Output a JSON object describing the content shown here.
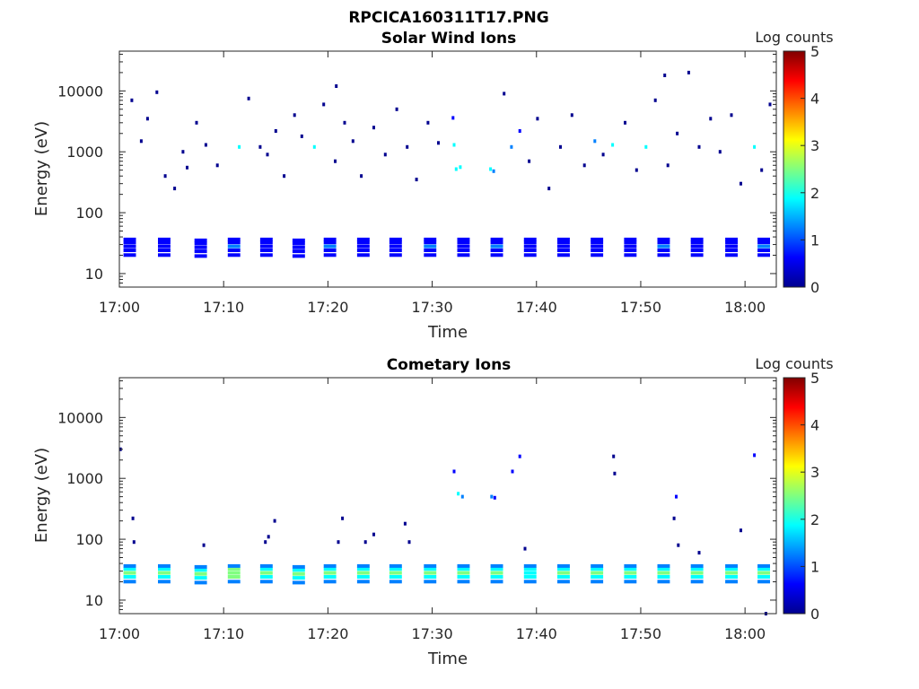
{
  "figure": {
    "title": "RPCICA160311T17.PNG"
  },
  "colormap": [
    "#00008f",
    "#0000ff",
    "#0080ff",
    "#00ffff",
    "#80ff80",
    "#ffff00",
    "#ff8000",
    "#ff0000",
    "#800000"
  ],
  "chart_data": [
    {
      "type": "heatmap",
      "title": "Solar Wind Ions",
      "xlabel": "Time",
      "ylabel": "Energy (eV)",
      "colorbar_label": "Log counts",
      "x_ticks": [
        "17:00",
        "17:10",
        "17:20",
        "17:30",
        "17:40",
        "17:50",
        "18:00"
      ],
      "x_tick_minutes": [
        0,
        10,
        20,
        30,
        40,
        50,
        60
      ],
      "xlim_minutes": [
        0,
        63
      ],
      "y_ticks": [
        "10",
        "100",
        "1000",
        "10000"
      ],
      "y_tick_values": [
        10,
        100,
        1000,
        10000
      ],
      "ylim": [
        6,
        45000
      ],
      "y_scale": "log",
      "colorbar_ticks": [
        "0",
        "1",
        "2",
        "3",
        "4",
        "5"
      ],
      "colorbar_range": [
        0,
        5
      ],
      "bands": [
        {
          "t0": 0.4,
          "t1": 1.6,
          "e": 28,
          "c": 0.9
        },
        {
          "t0": 3.7,
          "t1": 4.9,
          "e": 28,
          "c": 0.9
        },
        {
          "t0": 7.2,
          "t1": 8.4,
          "e": 27,
          "c": 0.8
        },
        {
          "t0": 10.4,
          "t1": 11.6,
          "e": 28,
          "c": 1.0
        },
        {
          "t0": 13.5,
          "t1": 14.7,
          "e": 28,
          "c": 0.9
        },
        {
          "t0": 16.6,
          "t1": 17.8,
          "e": 27,
          "c": 0.9
        },
        {
          "t0": 19.6,
          "t1": 20.8,
          "e": 28,
          "c": 1.0
        },
        {
          "t0": 22.8,
          "t1": 24.0,
          "e": 28,
          "c": 0.9
        },
        {
          "t0": 25.9,
          "t1": 27.1,
          "e": 28,
          "c": 0.9
        },
        {
          "t0": 29.2,
          "t1": 30.4,
          "e": 28,
          "c": 1.0
        },
        {
          "t0": 32.4,
          "t1": 33.6,
          "e": 28,
          "c": 0.9
        },
        {
          "t0": 35.6,
          "t1": 36.8,
          "e": 28,
          "c": 1.0
        },
        {
          "t0": 38.8,
          "t1": 40.0,
          "e": 28,
          "c": 0.8
        },
        {
          "t0": 42.0,
          "t1": 43.2,
          "e": 28,
          "c": 0.9
        },
        {
          "t0": 45.2,
          "t1": 46.4,
          "e": 28,
          "c": 0.9
        },
        {
          "t0": 48.4,
          "t1": 49.6,
          "e": 28,
          "c": 0.9
        },
        {
          "t0": 51.6,
          "t1": 52.8,
          "e": 28,
          "c": 1.0
        },
        {
          "t0": 54.8,
          "t1": 56.0,
          "e": 28,
          "c": 0.9
        },
        {
          "t0": 58.1,
          "t1": 59.3,
          "e": 28,
          "c": 0.9
        },
        {
          "t0": 61.2,
          "t1": 62.4,
          "e": 28,
          "c": 1.0
        }
      ],
      "points": [
        {
          "t": 1.2,
          "e": 7000,
          "c": 0.1
        },
        {
          "t": 2.1,
          "e": 1500,
          "c": 0.2
        },
        {
          "t": 2.7,
          "e": 3500,
          "c": 0.1
        },
        {
          "t": 3.6,
          "e": 9500,
          "c": 0.1
        },
        {
          "t": 4.4,
          "e": 400,
          "c": 0.2
        },
        {
          "t": 5.3,
          "e": 250,
          "c": 0.1
        },
        {
          "t": 6.1,
          "e": 1000,
          "c": 0.2
        },
        {
          "t": 6.5,
          "e": 550,
          "c": 0.3
        },
        {
          "t": 7.4,
          "e": 3000,
          "c": 0.1
        },
        {
          "t": 8.3,
          "e": 1300,
          "c": 0.2
        },
        {
          "t": 9.4,
          "e": 600,
          "c": 0.1
        },
        {
          "t": 11.5,
          "e": 1200,
          "c": 1.8
        },
        {
          "t": 12.4,
          "e": 7500,
          "c": 0.1
        },
        {
          "t": 13.5,
          "e": 1200,
          "c": 0.3
        },
        {
          "t": 14.2,
          "e": 900,
          "c": 0.2
        },
        {
          "t": 15.0,
          "e": 2200,
          "c": 0.1
        },
        {
          "t": 15.8,
          "e": 400,
          "c": 0.2
        },
        {
          "t": 16.8,
          "e": 4000,
          "c": 0.1
        },
        {
          "t": 17.5,
          "e": 1800,
          "c": 0.3
        },
        {
          "t": 18.7,
          "e": 1200,
          "c": 1.9
        },
        {
          "t": 19.6,
          "e": 6000,
          "c": 0.1
        },
        {
          "t": 20.7,
          "e": 700,
          "c": 0.2
        },
        {
          "t": 21.6,
          "e": 3000,
          "c": 0.1
        },
        {
          "t": 22.4,
          "e": 1500,
          "c": 0.2
        },
        {
          "t": 23.2,
          "e": 400,
          "c": 0.1
        },
        {
          "t": 24.4,
          "e": 2500,
          "c": 0.1
        },
        {
          "t": 25.5,
          "e": 900,
          "c": 0.2
        },
        {
          "t": 26.6,
          "e": 5000,
          "c": 0.1
        },
        {
          "t": 27.6,
          "e": 1200,
          "c": 0.3
        },
        {
          "t": 28.5,
          "e": 350,
          "c": 0.2
        },
        {
          "t": 29.6,
          "e": 3000,
          "c": 0.1
        },
        {
          "t": 30.6,
          "e": 1400,
          "c": 0.2
        },
        {
          "t": 32.3,
          "e": 520,
          "c": 1.9
        },
        {
          "t": 32.7,
          "e": 560,
          "c": 2.1
        },
        {
          "t": 32.1,
          "e": 1300,
          "c": 1.8
        },
        {
          "t": 32.0,
          "e": 3600,
          "c": 0.9
        },
        {
          "t": 35.6,
          "e": 520,
          "c": 1.6
        },
        {
          "t": 35.9,
          "e": 480,
          "c": 1.2
        },
        {
          "t": 37.6,
          "e": 1200,
          "c": 1.5
        },
        {
          "t": 38.4,
          "e": 2200,
          "c": 0.9
        },
        {
          "t": 39.3,
          "e": 700,
          "c": 0.2
        },
        {
          "t": 40.1,
          "e": 3500,
          "c": 0.1
        },
        {
          "t": 41.2,
          "e": 250,
          "c": 0.2
        },
        {
          "t": 42.3,
          "e": 1200,
          "c": 0.2
        },
        {
          "t": 43.4,
          "e": 4000,
          "c": 0.1
        },
        {
          "t": 44.6,
          "e": 600,
          "c": 0.2
        },
        {
          "t": 45.6,
          "e": 1500,
          "c": 1.2
        },
        {
          "t": 46.4,
          "e": 900,
          "c": 0.2
        },
        {
          "t": 47.3,
          "e": 1300,
          "c": 1.7
        },
        {
          "t": 48.5,
          "e": 3000,
          "c": 0.1
        },
        {
          "t": 49.6,
          "e": 500,
          "c": 0.2
        },
        {
          "t": 50.5,
          "e": 1200,
          "c": 1.9
        },
        {
          "t": 51.4,
          "e": 7000,
          "c": 0.1
        },
        {
          "t": 52.6,
          "e": 600,
          "c": 0.3
        },
        {
          "t": 53.5,
          "e": 2000,
          "c": 0.2
        },
        {
          "t": 54.6,
          "e": 20000,
          "c": 0.1
        },
        {
          "t": 55.6,
          "e": 1200,
          "c": 0.2
        },
        {
          "t": 56.7,
          "e": 3500,
          "c": 0.1
        },
        {
          "t": 57.6,
          "e": 1000,
          "c": 0.2
        },
        {
          "t": 58.7,
          "e": 4000,
          "c": 0.1
        },
        {
          "t": 59.6,
          "e": 300,
          "c": 0.2
        },
        {
          "t": 60.9,
          "e": 1200,
          "c": 1.9
        },
        {
          "t": 61.6,
          "e": 500,
          "c": 0.2
        },
        {
          "t": 62.4,
          "e": 6000,
          "c": 0.1
        },
        {
          "t": 20.8,
          "e": 12000,
          "c": 0.1
        },
        {
          "t": 36.9,
          "e": 9000,
          "c": 0.1
        },
        {
          "t": 52.3,
          "e": 18000,
          "c": 0.1
        }
      ]
    },
    {
      "type": "heatmap",
      "title": "Cometary Ions",
      "xlabel": "Time",
      "ylabel": "Energy (eV)",
      "colorbar_label": "Log counts",
      "x_ticks": [
        "17:00",
        "17:10",
        "17:20",
        "17:30",
        "17:40",
        "17:50",
        "18:00"
      ],
      "x_tick_minutes": [
        0,
        10,
        20,
        30,
        40,
        50,
        60
      ],
      "xlim_minutes": [
        0,
        63
      ],
      "y_ticks": [
        "10",
        "100",
        "1000",
        "10000"
      ],
      "y_tick_values": [
        10,
        100,
        1000,
        10000
      ],
      "ylim": [
        6,
        45000
      ],
      "y_scale": "log",
      "colorbar_ticks": [
        "0",
        "1",
        "2",
        "3",
        "4",
        "5"
      ],
      "colorbar_range": [
        0,
        5
      ],
      "bands": [
        {
          "t0": 0.4,
          "t1": 1.6,
          "e": 28,
          "c": 2.4
        },
        {
          "t0": 3.7,
          "t1": 4.9,
          "e": 28,
          "c": 2.3
        },
        {
          "t0": 7.2,
          "t1": 8.4,
          "e": 27,
          "c": 2.2
        },
        {
          "t0": 10.4,
          "t1": 11.6,
          "e": 28,
          "c": 2.6
        },
        {
          "t0": 13.5,
          "t1": 14.7,
          "e": 28,
          "c": 2.3
        },
        {
          "t0": 16.6,
          "t1": 17.8,
          "e": 27,
          "c": 2.2
        },
        {
          "t0": 19.6,
          "t1": 20.8,
          "e": 28,
          "c": 2.5
        },
        {
          "t0": 22.8,
          "t1": 24.0,
          "e": 28,
          "c": 2.3
        },
        {
          "t0": 25.9,
          "t1": 27.1,
          "e": 28,
          "c": 2.3
        },
        {
          "t0": 29.2,
          "t1": 30.4,
          "e": 28,
          "c": 2.5
        },
        {
          "t0": 32.4,
          "t1": 33.6,
          "e": 28,
          "c": 2.3
        },
        {
          "t0": 35.6,
          "t1": 36.8,
          "e": 28,
          "c": 2.4
        },
        {
          "t0": 38.8,
          "t1": 40.0,
          "e": 28,
          "c": 2.1
        },
        {
          "t0": 42.0,
          "t1": 43.2,
          "e": 28,
          "c": 2.3
        },
        {
          "t0": 45.2,
          "t1": 46.4,
          "e": 28,
          "c": 2.2
        },
        {
          "t0": 48.4,
          "t1": 49.6,
          "e": 28,
          "c": 2.4
        },
        {
          "t0": 51.6,
          "t1": 52.8,
          "e": 28,
          "c": 2.5
        },
        {
          "t0": 54.8,
          "t1": 56.0,
          "e": 28,
          "c": 2.3
        },
        {
          "t0": 58.1,
          "t1": 59.3,
          "e": 28,
          "c": 2.4
        },
        {
          "t0": 61.2,
          "t1": 62.4,
          "e": 28,
          "c": 2.5
        }
      ],
      "points": [
        {
          "t": 0.1,
          "e": 3000,
          "c": 0.1
        },
        {
          "t": 1.3,
          "e": 220,
          "c": 0.1
        },
        {
          "t": 1.4,
          "e": 90,
          "c": 0.1
        },
        {
          "t": 8.1,
          "e": 80,
          "c": 0.1
        },
        {
          "t": 14.3,
          "e": 110,
          "c": 0.2
        },
        {
          "t": 14.0,
          "e": 90,
          "c": 0.1
        },
        {
          "t": 14.9,
          "e": 200,
          "c": 0.1
        },
        {
          "t": 21.0,
          "e": 90,
          "c": 0.1
        },
        {
          "t": 21.4,
          "e": 220,
          "c": 0.1
        },
        {
          "t": 23.6,
          "e": 90,
          "c": 0.1
        },
        {
          "t": 24.4,
          "e": 120,
          "c": 0.1
        },
        {
          "t": 27.4,
          "e": 180,
          "c": 0.2
        },
        {
          "t": 27.8,
          "e": 90,
          "c": 0.1
        },
        {
          "t": 32.1,
          "e": 1300,
          "c": 0.9
        },
        {
          "t": 32.5,
          "e": 560,
          "c": 1.6
        },
        {
          "t": 32.9,
          "e": 500,
          "c": 1.2
        },
        {
          "t": 35.7,
          "e": 500,
          "c": 1.0
        },
        {
          "t": 36.0,
          "e": 480,
          "c": 0.9
        },
        {
          "t": 37.7,
          "e": 1300,
          "c": 0.9
        },
        {
          "t": 38.4,
          "e": 2300,
          "c": 0.7
        },
        {
          "t": 38.9,
          "e": 70,
          "c": 0.2
        },
        {
          "t": 47.4,
          "e": 2300,
          "c": 0.1
        },
        {
          "t": 47.5,
          "e": 1200,
          "c": 0.1
        },
        {
          "t": 53.4,
          "e": 500,
          "c": 0.8
        },
        {
          "t": 53.2,
          "e": 220,
          "c": 0.1
        },
        {
          "t": 53.6,
          "e": 80,
          "c": 0.1
        },
        {
          "t": 55.6,
          "e": 60,
          "c": 0.1
        },
        {
          "t": 59.6,
          "e": 140,
          "c": 0.1
        },
        {
          "t": 60.9,
          "e": 2400,
          "c": 0.6
        },
        {
          "t": 62.0,
          "e": 6,
          "c": 0.1
        }
      ]
    }
  ]
}
